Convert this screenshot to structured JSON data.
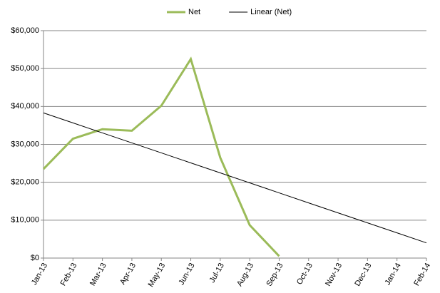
{
  "chart_data": {
    "type": "line",
    "categories": [
      "Jan-13",
      "Feb-13",
      "Mar-13",
      "Apr-13",
      "May-13",
      "Jun-13",
      "Jul-13",
      "Aug-13",
      "Sep-13",
      "Oct-13",
      "Nov-13",
      "Dec-13",
      "Jan-14",
      "Feb-14"
    ],
    "series": [
      {
        "name": "Net",
        "color": "#9bbb59",
        "values": [
          23500,
          31500,
          34000,
          33600,
          40200,
          52500,
          26500,
          8700,
          500,
          null,
          null,
          null,
          null,
          null
        ]
      },
      {
        "name": "Linear (Net)",
        "color": "#000000",
        "values": [
          38300,
          35660,
          33020,
          30390,
          27750,
          25110,
          22470,
          19840,
          17200,
          14560,
          11920,
          9290,
          6650,
          4010
        ]
      }
    ],
    "ylim": [
      0,
      60000
    ],
    "yticks": [
      {
        "value": 0,
        "label": "$0"
      },
      {
        "value": 10000,
        "label": "$10,000"
      },
      {
        "value": 20000,
        "label": "$20,000"
      },
      {
        "value": 30000,
        "label": "$30,000"
      },
      {
        "value": 40000,
        "label": "$40,000"
      },
      {
        "value": 50000,
        "label": "$50,000"
      },
      {
        "value": 60000,
        "label": "$60,000"
      }
    ],
    "grid": true,
    "legend": "top"
  }
}
